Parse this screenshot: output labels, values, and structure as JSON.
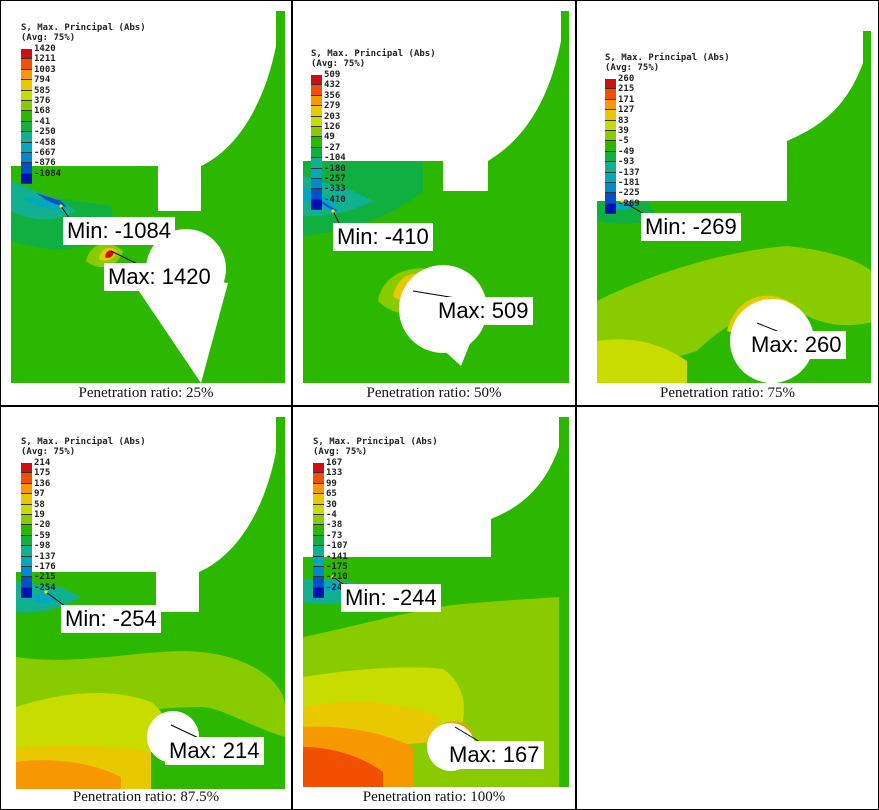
{
  "legend": {
    "title_line1": "S, Max. Principal (Abs)",
    "title_line2": "(Avg: 75%)",
    "colors": [
      "#d01010",
      "#f05000",
      "#f89800",
      "#e8c800",
      "#c8dc00",
      "#88cc00",
      "#2db800",
      "#10b040",
      "#10b090",
      "#00a8c0",
      "#0088d0",
      "#0050c8",
      "#0010b0"
    ]
  },
  "panels": [
    {
      "caption": "Penetration ratio: 25%",
      "min_label": "Min: -1084",
      "max_label": "Max: 1420",
      "legend_values": [
        "1420",
        "1211",
        "1003",
        "794",
        "585",
        "376",
        "168",
        "-41",
        "-250",
        "-458",
        "-667",
        "-876",
        "-1084"
      ]
    },
    {
      "caption": "Penetration ratio: 50%",
      "min_label": "Min: -410",
      "max_label": "Max: 509",
      "legend_values": [
        "509",
        "432",
        "356",
        "279",
        "203",
        "126",
        "49",
        "-27",
        "-104",
        "-180",
        "-257",
        "-333",
        "-410"
      ]
    },
    {
      "caption": "Penetration ratio: 75%",
      "min_label": "Min: -269",
      "max_label": "Max: 260",
      "legend_values": [
        "260",
        "215",
        "171",
        "127",
        "83",
        "39",
        "-5",
        "-49",
        "-93",
        "-137",
        "-181",
        "-225",
        "-269"
      ]
    },
    {
      "caption": "Penetration ratio: 87.5%",
      "min_label": "Min: -254",
      "max_label": "Max: 214",
      "legend_values": [
        "214",
        "175",
        "136",
        "97",
        "58",
        "19",
        "-20",
        "-59",
        "-98",
        "-137",
        "-176",
        "-215",
        "-254"
      ]
    },
    {
      "caption": "Penetration ratio: 100%",
      "min_label": "Min: -244",
      "max_label": "Max: 167",
      "legend_values": [
        "167",
        "133",
        "99",
        "65",
        "30",
        "-4",
        "-38",
        "-73",
        "-107",
        "-141",
        "-175",
        "-210",
        "-244"
      ]
    }
  ]
}
